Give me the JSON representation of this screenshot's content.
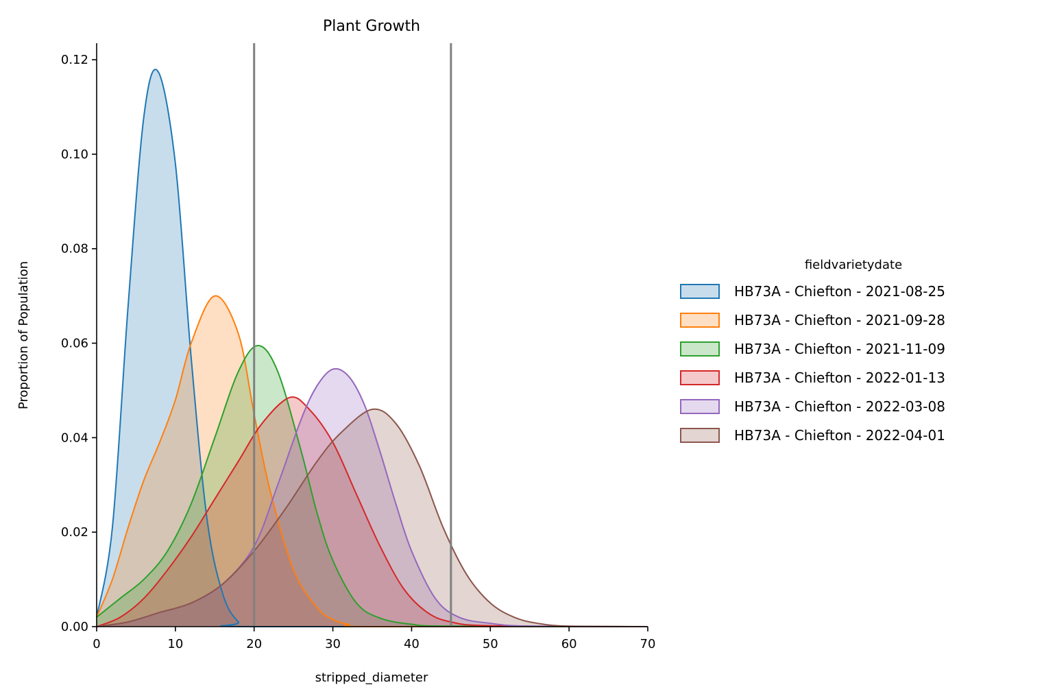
{
  "chart_data": {
    "type": "area",
    "title": "Plant Growth",
    "xlabel": "stripped_diameter",
    "ylabel": "Proportion of Population",
    "xlim": [
      0,
      70
    ],
    "ylim": [
      0,
      0.1235
    ],
    "xticks": [
      0,
      10,
      20,
      30,
      40,
      50,
      60,
      70
    ],
    "yticks": [
      0.0,
      0.02,
      0.04,
      0.06,
      0.08,
      0.1,
      0.12
    ],
    "xtick_labels": [
      "0",
      "10",
      "20",
      "30",
      "40",
      "50",
      "60",
      "70"
    ],
    "ytick_labels": [
      "0.00",
      "0.02",
      "0.04",
      "0.06",
      "0.08",
      "0.10",
      "0.12"
    ],
    "grid": false,
    "legend_title": "fieldvarietydate",
    "legend_position": "right",
    "vlines": [
      20,
      45
    ],
    "vline_color": "#808080",
    "series": [
      {
        "name": "HB73A - Chiefton - 2021-08-25",
        "color": "#1f77b4",
        "x": [
          0,
          2,
          4,
          6,
          7.8,
          10,
          12,
          14,
          16,
          18,
          20,
          70
        ],
        "y": [
          0.002,
          0.021,
          0.068,
          0.108,
          0.1175,
          0.098,
          0.057,
          0.023,
          0.007,
          0.001,
          0.0,
          0.0
        ]
      },
      {
        "name": "HB73A - Chiefton - 2021-09-28",
        "color": "#ff7f0e",
        "x": [
          0,
          2,
          4,
          6,
          8,
          10,
          12,
          15,
          18,
          20,
          22,
          25,
          28,
          30,
          32,
          35,
          70
        ],
        "y": [
          0.002,
          0.01,
          0.021,
          0.031,
          0.039,
          0.048,
          0.06,
          0.07,
          0.062,
          0.045,
          0.029,
          0.012,
          0.004,
          0.0015,
          0.0005,
          0.0,
          0.0
        ]
      },
      {
        "name": "HB73A - Chiefton - 2021-11-09",
        "color": "#2ca02c",
        "x": [
          0,
          3,
          6,
          9,
          12,
          15,
          18,
          20.5,
          23,
          26,
          28,
          30,
          33,
          36,
          40,
          45,
          70
        ],
        "y": [
          0.002,
          0.006,
          0.01,
          0.016,
          0.026,
          0.04,
          0.054,
          0.0595,
          0.054,
          0.037,
          0.024,
          0.014,
          0.005,
          0.0018,
          0.0005,
          0.0001,
          0.0
        ]
      },
      {
        "name": "HB73A - Chiefton - 2022-01-13",
        "color": "#d62728",
        "x": [
          0,
          3,
          6,
          9,
          12,
          15,
          18,
          21,
          24.5,
          27,
          30,
          33,
          36,
          39,
          42,
          45,
          50,
          70
        ],
        "y": [
          0.0,
          0.002,
          0.006,
          0.012,
          0.019,
          0.027,
          0.035,
          0.043,
          0.0485,
          0.046,
          0.039,
          0.028,
          0.017,
          0.008,
          0.003,
          0.001,
          0.0002,
          0.0
        ]
      },
      {
        "name": "HB73A - Chiefton - 2022-03-08",
        "color": "#9467bd",
        "x": [
          0,
          4,
          8,
          12,
          16,
          20,
          23,
          26,
          28,
          30,
          32,
          34,
          36,
          38,
          40,
          43,
          46,
          50,
          55,
          70
        ],
        "y": [
          0.0,
          0.001,
          0.003,
          0.005,
          0.009,
          0.017,
          0.03,
          0.044,
          0.051,
          0.0545,
          0.053,
          0.047,
          0.037,
          0.026,
          0.016,
          0.006,
          0.002,
          0.0007,
          0.0001,
          0.0
        ]
      },
      {
        "name": "HB73A - Chiefton - 2022-04-01",
        "color": "#8c564b",
        "x": [
          0,
          4,
          8,
          12,
          16,
          20,
          24,
          28,
          31,
          35,
          38,
          41,
          44,
          47,
          50,
          53,
          56,
          60,
          70
        ],
        "y": [
          0.0,
          0.001,
          0.003,
          0.005,
          0.009,
          0.016,
          0.025,
          0.035,
          0.041,
          0.046,
          0.043,
          0.034,
          0.021,
          0.011,
          0.005,
          0.002,
          0.0007,
          0.0001,
          0.0
        ]
      }
    ]
  }
}
